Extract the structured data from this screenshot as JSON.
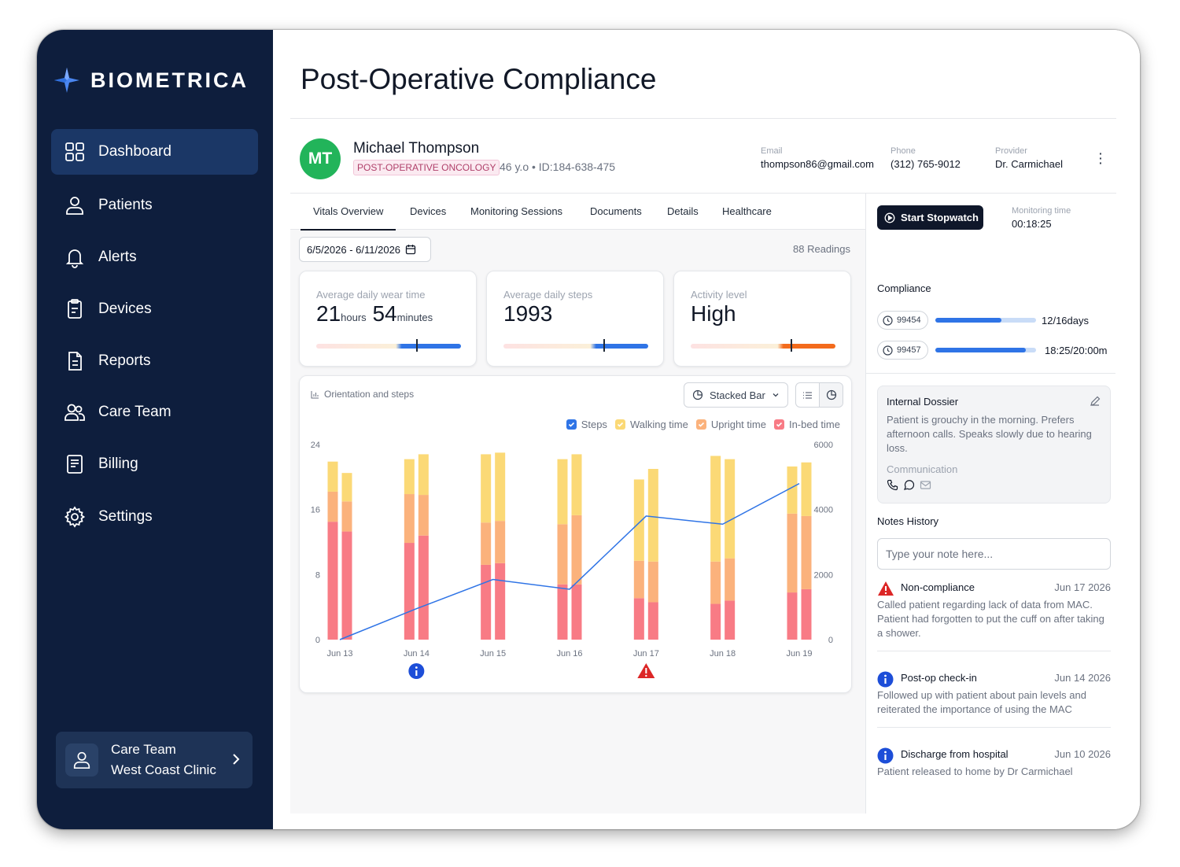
{
  "brand": {
    "name": "BIOMETRICA"
  },
  "sidebar": {
    "items": [
      {
        "label": "Dashboard",
        "icon": "grid-icon"
      },
      {
        "label": "Patients",
        "icon": "user-icon"
      },
      {
        "label": "Alerts",
        "icon": "bell-icon"
      },
      {
        "label": "Devices",
        "icon": "clipboard-icon"
      },
      {
        "label": "Reports",
        "icon": "document-icon"
      },
      {
        "label": "Care Team",
        "icon": "users-icon"
      },
      {
        "label": "Billing",
        "icon": "receipt-icon"
      },
      {
        "label": "Settings",
        "icon": "gear-icon"
      }
    ],
    "care_team": {
      "title": "Care Team",
      "clinic": "West Coast Clinic"
    }
  },
  "page": {
    "title": "Post-Operative Compliance"
  },
  "patient": {
    "initials": "MT",
    "name": "Michael Thompson",
    "tag": "POST-OPERATIVE ONCOLOGY",
    "meta": "46 y.o • ID:184-638-475",
    "email_label": "Email",
    "email": "thompson86@gmail.com",
    "phone_label": "Phone",
    "phone": "(312) 765-9012",
    "provider_label": "Provider",
    "provider": "Dr. Carmichael",
    "avatar_color": "#22b45a"
  },
  "tabs": [
    "Vitals Overview",
    "Devices",
    "Monitoring Sessions",
    "Documents",
    "Details",
    "Healthcare"
  ],
  "filters": {
    "date_range": "6/5/2026 - 6/11/2026",
    "readings": "88 Readings"
  },
  "stats": {
    "wear": {
      "label": "Average daily wear time",
      "hours": "21",
      "hours_unit": "hours",
      "minutes": "54",
      "minutes_unit": "minutes"
    },
    "steps": {
      "label": "Average daily steps",
      "value": "1993"
    },
    "activity": {
      "label": "Activity level",
      "value": "High"
    }
  },
  "chart": {
    "title": "Orientation and steps",
    "type_label": "Stacked Bar",
    "legend": [
      "Steps",
      "Walking time",
      "Upright time",
      "In-bed time"
    ],
    "colors": {
      "steps": "#2f74e6",
      "walking": "#fbd976",
      "upright": "#fbb27c",
      "inbed": "#f87b85"
    }
  },
  "chart_data": {
    "type": "bar",
    "stacked": true,
    "categories": [
      "Jun 13",
      "Jun 14",
      "Jun 15",
      "Jun 16",
      "Jun 17",
      "Jun 18",
      "Jun 19"
    ],
    "bars_per_category": 2,
    "series": [
      {
        "name": "In-bed time",
        "values": [
          [
            14.5,
            13.3
          ],
          [
            11.9,
            12.8
          ],
          [
            9.2,
            9.4
          ],
          [
            6.8,
            6.8
          ],
          [
            5.1,
            4.6
          ],
          [
            4.4,
            4.8
          ],
          [
            5.8,
            6.2
          ]
        ]
      },
      {
        "name": "Upright time",
        "values": [
          [
            3.7,
            3.7
          ],
          [
            6.0,
            5.0
          ],
          [
            5.2,
            5.2
          ],
          [
            7.4,
            8.5
          ],
          [
            4.6,
            5.0
          ],
          [
            5.2,
            5.2
          ],
          [
            9.7,
            9.0
          ]
        ]
      },
      {
        "name": "Walking time",
        "values": [
          [
            3.7,
            3.5
          ],
          [
            4.3,
            5.0
          ],
          [
            8.4,
            8.4
          ],
          [
            8.0,
            7.5
          ],
          [
            10.0,
            11.4
          ],
          [
            13.0,
            12.2
          ],
          [
            5.8,
            6.6
          ]
        ]
      }
    ],
    "line_series": {
      "name": "Steps",
      "values": [
        0,
        950,
        1850,
        1550,
        3800,
        3550,
        4800
      ]
    },
    "y_left": {
      "min": 0,
      "max": 24,
      "ticks": [
        0,
        8,
        16,
        24
      ]
    },
    "y_right": {
      "min": 0,
      "max": 6000,
      "ticks": [
        0,
        2000,
        4000,
        6000
      ]
    },
    "annotations": [
      {
        "category": "Jun 14",
        "icon": "info-icon"
      },
      {
        "category": "Jun 17",
        "icon": "warning-icon"
      }
    ]
  },
  "right_panel": {
    "stopwatch_label": "Start Stopwatch",
    "monitoring_label": "Monitoring time",
    "monitoring_value": "00:18:25",
    "compliance_title": "Compliance",
    "compliance": [
      {
        "id": "99454",
        "value": "12/16days",
        "progress": 0.66
      },
      {
        "id": "99457",
        "value": "18:25/20:00m",
        "progress": 0.9
      }
    ],
    "dossier": {
      "title": "Internal Dossier",
      "text": "Patient is grouchy in the morning. Prefers afternoon calls. Speaks slowly due to hearing loss.",
      "comm_label": "Communication"
    },
    "notes_title": "Notes History",
    "note_placeholder": "Type your note here...",
    "notes": [
      {
        "type": "warning",
        "title": "Non-compliance",
        "date": "Jun 17 2026",
        "body": "Called patient regarding lack of data from MAC. Patient had forgotten to put the cuff on after taking a shower."
      },
      {
        "type": "info",
        "title": "Post-op check-in",
        "date": "Jun 14 2026",
        "body": "Followed up with patient about pain levels and reiterated the importance of using the MAC"
      },
      {
        "type": "info",
        "title": "Discharge from hospital",
        "date": "Jun 10 2026",
        "body": "Patient released to home by Dr Carmichael"
      }
    ]
  }
}
